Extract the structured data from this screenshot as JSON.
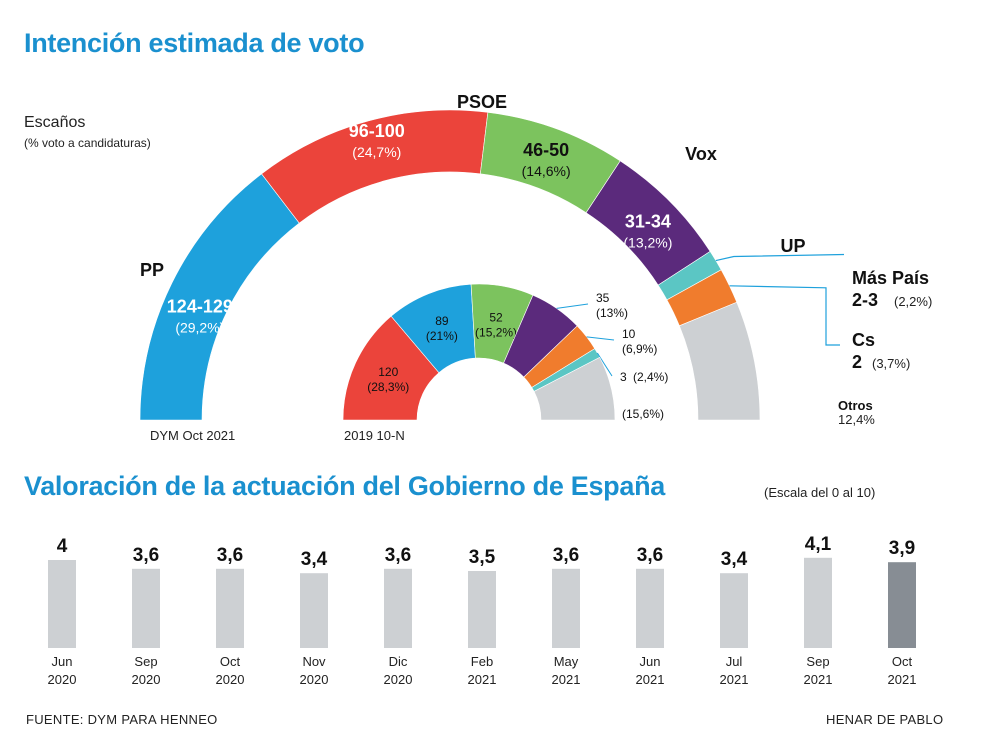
{
  "title_top": "Intención estimada de voto",
  "subtitle_seats": "Escaños",
  "subtitle_pct": "(% voto a candidaturas)",
  "colors": {
    "pp": "#1ea1dc",
    "psoe": "#eb443b",
    "vox": "#7cc35e",
    "up": "#5b2a7c",
    "maspais": "#5bc6c4",
    "cs": "#f07c2d",
    "otros": "#cdd0d3",
    "bar": "#cdd0d3",
    "bar_highlight": "#878d94",
    "title": "#1a90cf"
  },
  "chart_data": [
    {
      "type": "pie",
      "subtype": "half-donut",
      "caption": "DYM Oct 2021",
      "series": [
        {
          "party": "PP",
          "seats": "124-129",
          "pct_label": "(29,2%)",
          "pct": 29.2,
          "color": "#1ea1dc"
        },
        {
          "party": "PSOE",
          "seats": "96-100",
          "pct_label": "(24,7%)",
          "pct": 24.7,
          "color": "#eb443b"
        },
        {
          "party": "Vox",
          "seats": "46-50",
          "pct_label": "(14,6%)",
          "pct": 14.6,
          "color": "#7cc35e"
        },
        {
          "party": "UP",
          "seats": "31-34",
          "pct_label": "(13,2%)",
          "pct": 13.2,
          "color": "#5b2a7c"
        },
        {
          "party": "Más País",
          "seats": "2-3",
          "pct_label": "(2,2%)",
          "pct": 2.2,
          "color": "#5bc6c4"
        },
        {
          "party": "Cs",
          "seats": "2",
          "pct_label": "(3,7%)",
          "pct": 3.7,
          "color": "#f07c2d"
        },
        {
          "party": "Otros",
          "seats": "",
          "pct_label": "12,4%",
          "pct": 12.4,
          "color": "#cdd0d3"
        }
      ]
    },
    {
      "type": "pie",
      "subtype": "half-donut",
      "caption": "2019 10-N",
      "series": [
        {
          "party": "PSOE",
          "seats": "120",
          "pct_label": "(28,3%)",
          "pct": 28.3,
          "color": "#eb443b"
        },
        {
          "party": "PP",
          "seats": "89",
          "pct_label": "(21%)",
          "pct": 21,
          "color": "#1ea1dc"
        },
        {
          "party": "Vox",
          "seats": "52",
          "pct_label": "(15,2%)",
          "pct": 15.2,
          "color": "#7cc35e"
        },
        {
          "party": "UP",
          "seats": "35",
          "pct_label": "(13%)",
          "pct": 13,
          "color": "#5b2a7c"
        },
        {
          "party": "Cs",
          "seats": "10",
          "pct_label": "(6,9%)",
          "pct": 6.9,
          "color": "#f07c2d"
        },
        {
          "party": "Más País",
          "seats": "3",
          "pct_label": "(2,4%)",
          "pct": 2.4,
          "color": "#5bc6c4"
        },
        {
          "party": "Otros",
          "seats": "",
          "pct_label": "(15,6%)",
          "pct": 15.6,
          "color": "#cdd0d3"
        }
      ]
    },
    {
      "type": "bar",
      "title": "Valoración de la actuación del Gobierno de España",
      "scale_note": "(Escala del 0 al 10)",
      "ylim": [
        0,
        10
      ],
      "categories": [
        {
          "month": "Jun",
          "year": "2020"
        },
        {
          "month": "Sep",
          "year": "2020"
        },
        {
          "month": "Oct",
          "year": "2020"
        },
        {
          "month": "Nov",
          "year": "2020"
        },
        {
          "month": "Dic",
          "year": "2020"
        },
        {
          "month": "Feb",
          "year": "2021"
        },
        {
          "month": "May",
          "year": "2021"
        },
        {
          "month": "Jun",
          "year": "2021"
        },
        {
          "month": "Jul",
          "year": "2021"
        },
        {
          "month": "Sep",
          "year": "2021"
        },
        {
          "month": "Oct",
          "year": "2021"
        }
      ],
      "values": [
        4,
        3.6,
        3.6,
        3.4,
        3.6,
        3.5,
        3.6,
        3.6,
        3.4,
        4.1,
        3.9
      ],
      "value_labels": [
        "4",
        "3,6",
        "3,6",
        "3,4",
        "3,6",
        "3,5",
        "3,6",
        "3,6",
        "3,4",
        "4,1",
        "3,9"
      ],
      "highlight_index": 10
    }
  ],
  "footer": {
    "source": "FUENTE: DYM PARA HENNEO",
    "author": "HENAR DE PABLO"
  }
}
